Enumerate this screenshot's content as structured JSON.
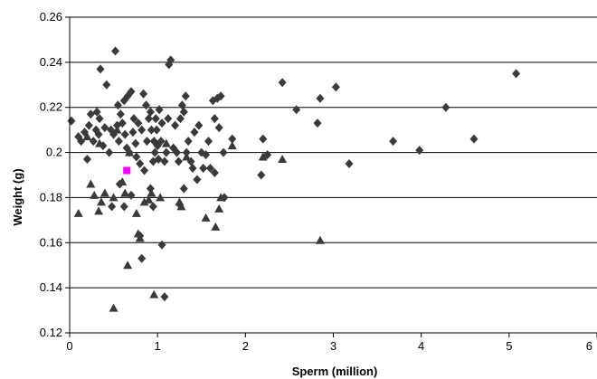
{
  "chart_data": {
    "type": "scatter",
    "title": "",
    "xlabel": "Sperm (million)",
    "ylabel": "Weight (g)",
    "xlim": [
      0,
      6
    ],
    "ylim": [
      0.12,
      0.26
    ],
    "x_ticks": [
      "0",
      "1",
      "2",
      "3",
      "4",
      "5",
      "6"
    ],
    "y_ticks": [
      "0.12",
      "0.14",
      "0.16",
      "0.18",
      "0.2",
      "0.22",
      "0.24",
      "0.26"
    ],
    "grid": "horizontal",
    "legend": "none",
    "series": [
      {
        "marker": "diamond",
        "color": "#3a3a3a",
        "points": [
          [
            0.02,
            0.214
          ],
          [
            0.1,
            0.207
          ],
          [
            0.13,
            0.205
          ],
          [
            0.17,
            0.209
          ],
          [
            0.2,
            0.197
          ],
          [
            0.22,
            0.212
          ],
          [
            0.24,
            0.217
          ],
          [
            0.27,
            0.205
          ],
          [
            0.3,
            0.21
          ],
          [
            0.31,
            0.218
          ],
          [
            0.33,
            0.208
          ],
          [
            0.34,
            0.215
          ],
          [
            0.35,
            0.237
          ],
          [
            0.38,
            0.203
          ],
          [
            0.4,
            0.211
          ],
          [
            0.42,
            0.23
          ],
          [
            0.45,
            0.2
          ],
          [
            0.47,
            0.21
          ],
          [
            0.5,
            0.208
          ],
          [
            0.52,
            0.245
          ],
          [
            0.54,
            0.212
          ],
          [
            0.55,
            0.221
          ],
          [
            0.56,
            0.205
          ],
          [
            0.58,
            0.217
          ],
          [
            0.6,
            0.213
          ],
          [
            0.62,
            0.223
          ],
          [
            0.63,
            0.208
          ],
          [
            0.65,
            0.202
          ],
          [
            0.66,
            0.225
          ],
          [
            0.68,
            0.2
          ],
          [
            0.7,
            0.227
          ],
          [
            0.72,
            0.209
          ],
          [
            0.73,
            0.215
          ],
          [
            0.75,
            0.204
          ],
          [
            0.76,
            0.198
          ],
          [
            0.78,
            0.213
          ],
          [
            0.8,
            0.195
          ],
          [
            0.82,
            0.21
          ],
          [
            0.84,
            0.226
          ],
          [
            0.85,
            0.192
          ],
          [
            0.87,
            0.221
          ],
          [
            0.88,
            0.205
          ],
          [
            0.9,
            0.215
          ],
          [
            0.92,
            0.218
          ],
          [
            0.93,
            0.21
          ],
          [
            0.95,
            0.196
          ],
          [
            0.96,
            0.205
          ],
          [
            0.97,
            0.2
          ],
          [
            0.98,
            0.215
          ],
          [
            0.99,
            0.21
          ],
          [
            1.0,
            0.203
          ],
          [
            1.01,
            0.197
          ],
          [
            1.02,
            0.219
          ],
          [
            1.04,
            0.205
          ],
          [
            1.05,
            0.213
          ],
          [
            1.08,
            0.196
          ],
          [
            1.1,
            0.2
          ],
          [
            1.12,
            0.215
          ],
          [
            1.13,
            0.239
          ],
          [
            1.15,
            0.241
          ],
          [
            1.18,
            0.202
          ],
          [
            1.2,
            0.212
          ],
          [
            1.22,
            0.2
          ],
          [
            1.24,
            0.196
          ],
          [
            1.26,
            0.215
          ],
          [
            1.28,
            0.221
          ],
          [
            1.3,
            0.218
          ],
          [
            1.32,
            0.225
          ],
          [
            1.33,
            0.2
          ],
          [
            1.35,
            0.205
          ],
          [
            1.38,
            0.196
          ],
          [
            1.4,
            0.193
          ],
          [
            1.42,
            0.209
          ],
          [
            1.45,
            0.188
          ],
          [
            1.47,
            0.212
          ],
          [
            1.5,
            0.2
          ],
          [
            1.52,
            0.193
          ],
          [
            1.55,
            0.199
          ],
          [
            1.58,
            0.205
          ],
          [
            1.6,
            0.193
          ],
          [
            1.63,
            0.223
          ],
          [
            1.65,
            0.215
          ],
          [
            1.68,
            0.224
          ],
          [
            1.7,
            0.211
          ],
          [
            1.72,
            0.225
          ],
          [
            1.75,
            0.2
          ],
          [
            1.76,
            0.18
          ],
          [
            1.85,
            0.206
          ],
          [
            2.18,
            0.19
          ],
          [
            2.2,
            0.206
          ],
          [
            2.25,
            0.199
          ],
          [
            2.42,
            0.231
          ],
          [
            2.58,
            0.219
          ],
          [
            2.82,
            0.213
          ],
          [
            2.85,
            0.224
          ],
          [
            3.03,
            0.229
          ],
          [
            3.18,
            0.195
          ],
          [
            3.68,
            0.205
          ],
          [
            3.98,
            0.201
          ],
          [
            4.28,
            0.22
          ],
          [
            4.6,
            0.206
          ],
          [
            5.08,
            0.235
          ],
          [
            0.82,
            0.153
          ],
          [
            0.8,
            0.163
          ],
          [
            0.95,
            0.176
          ],
          [
            1.05,
            0.159
          ],
          [
            1.08,
            0.136
          ],
          [
            0.62,
            0.176
          ],
          [
            0.57,
            0.186
          ],
          [
            0.48,
            0.176
          ],
          [
            0.92,
            0.184
          ],
          [
            1.25,
            0.177
          ],
          [
            1.3,
            0.184
          ],
          [
            1.65,
            0.191
          ],
          [
            0.7,
            0.181
          ]
        ]
      },
      {
        "marker": "triangle",
        "color": "#3a3a3a",
        "points": [
          [
            0.1,
            0.173
          ],
          [
            0.2,
            0.207
          ],
          [
            0.24,
            0.186
          ],
          [
            0.28,
            0.181
          ],
          [
            0.33,
            0.174
          ],
          [
            0.34,
            0.204
          ],
          [
            0.36,
            0.178
          ],
          [
            0.4,
            0.182
          ],
          [
            0.5,
            0.131
          ],
          [
            0.5,
            0.18
          ],
          [
            0.54,
            0.21
          ],
          [
            0.6,
            0.187
          ],
          [
            0.63,
            0.182
          ],
          [
            0.66,
            0.15
          ],
          [
            0.68,
            0.2
          ],
          [
            0.76,
            0.173
          ],
          [
            0.78,
            0.164
          ],
          [
            0.8,
            0.162
          ],
          [
            0.85,
            0.178
          ],
          [
            0.9,
            0.179
          ],
          [
            0.93,
            0.182
          ],
          [
            0.96,
            0.137
          ],
          [
            1.03,
            0.18
          ],
          [
            1.1,
            0.204
          ],
          [
            1.25,
            0.178
          ],
          [
            1.27,
            0.176
          ],
          [
            1.33,
            0.198
          ],
          [
            1.55,
            0.171
          ],
          [
            1.66,
            0.167
          ],
          [
            1.7,
            0.175
          ],
          [
            1.72,
            0.18
          ],
          [
            1.85,
            0.203
          ],
          [
            2.2,
            0.198
          ],
          [
            2.42,
            0.197
          ],
          [
            2.85,
            0.161
          ]
        ]
      },
      {
        "marker": "square",
        "color": "#ff00ff",
        "points": [
          [
            0.65,
            0.192
          ]
        ]
      }
    ]
  }
}
